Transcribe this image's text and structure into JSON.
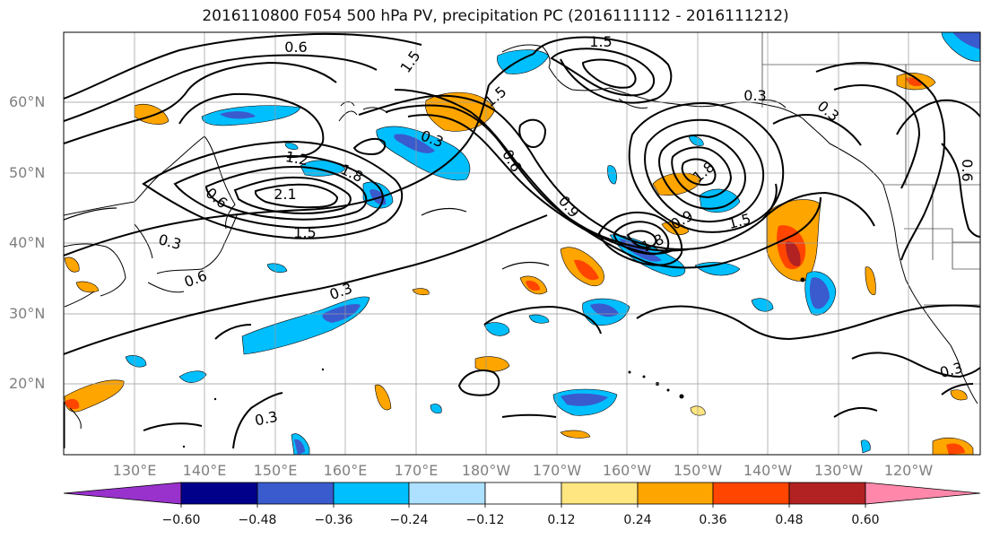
{
  "title": "2016110800 F054 500 hPa PV, precipitation PC (2016111112 - 2016111212)",
  "map": {
    "lat_labels": [
      "60°N",
      "50°N",
      "40°N",
      "30°N",
      "20°N"
    ],
    "lon_labels": [
      "130°E",
      "140°E",
      "150°E",
      "160°E",
      "170°E",
      "180°W",
      "170°W",
      "160°W",
      "150°W",
      "140°W",
      "130°W",
      "120°W"
    ],
    "contour_labels": [
      "0.6",
      "1.5",
      "0.3",
      "1.5",
      "1.2",
      "1.8",
      "2.1",
      "1.5",
      "0.6",
      "0.3",
      "0.6",
      "0.3",
      "0.6",
      "0.9",
      "1.5",
      "1.8",
      "1.5",
      "1.8",
      "0.3",
      "0.6",
      "0.3",
      "0.3",
      "0.3",
      "0.9"
    ]
  },
  "colorbar": {
    "ticks": [
      "−0.60",
      "−0.48",
      "−0.36",
      "−0.24",
      "−0.12",
      "0.12",
      "0.24",
      "0.36",
      "0.48",
      "0.60"
    ],
    "colors": [
      "#9932CC",
      "#00008B",
      "#3A5BCD",
      "#00BFFF",
      "#ADE1FF",
      "#FFFFFF",
      "#FFE680",
      "#FFA500",
      "#FF4500",
      "#B22222",
      "#FF88AA"
    ]
  }
}
